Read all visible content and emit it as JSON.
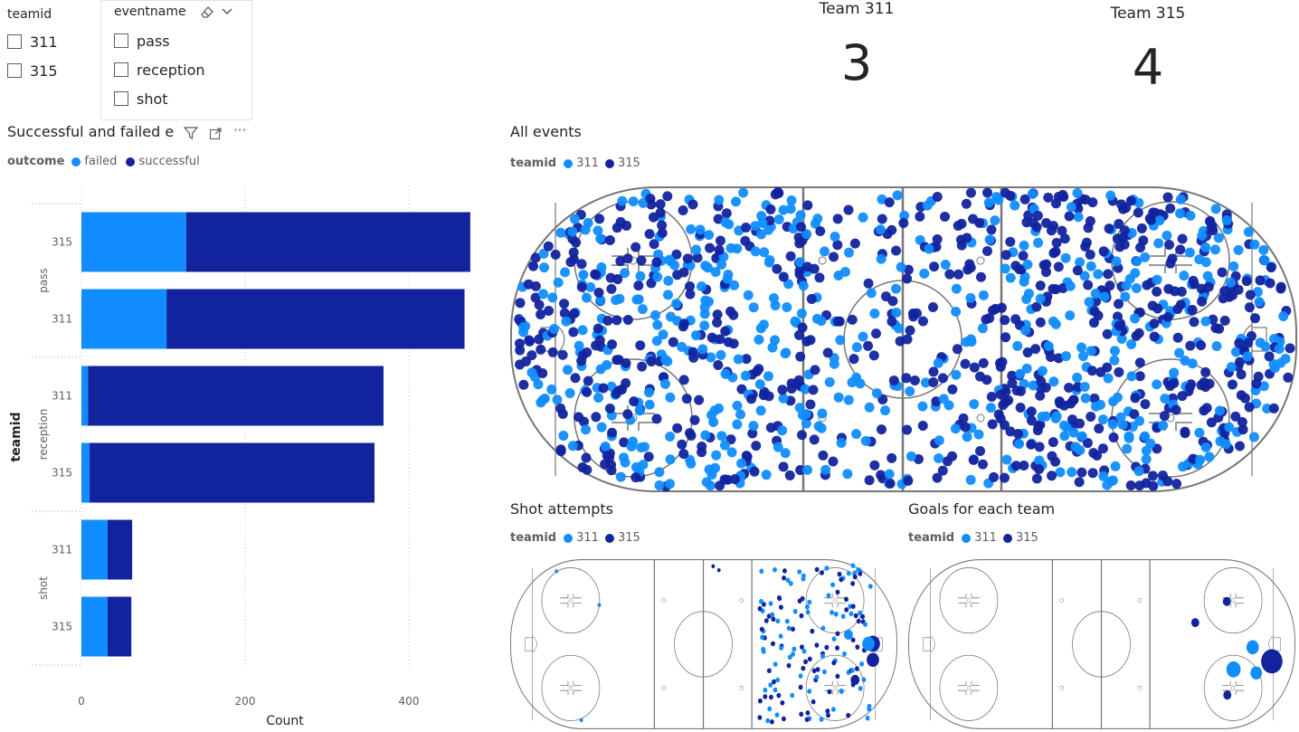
{
  "colors": {
    "team311": "#118DFF",
    "team315": "#12239E",
    "failed": "#118DFF",
    "successful": "#12239E",
    "rink_line": "#777777"
  },
  "slicer_team": {
    "title": "teamid",
    "options": [
      "311",
      "315"
    ]
  },
  "slicer_event": {
    "title": "eventname",
    "options": [
      "pass",
      "reception",
      "shot"
    ]
  },
  "cards": [
    {
      "label": "Team 311",
      "value": "3"
    },
    {
      "label": "Team 315",
      "value": "4"
    }
  ],
  "bar_visual": {
    "title": "Successful and failed e",
    "icons": [
      "filter-icon",
      "focus-mode-icon",
      "more-options-icon"
    ],
    "more": "···"
  },
  "all_events": {
    "title": "All events",
    "legend_title": "teamid",
    "legend": [
      "311",
      "315"
    ]
  },
  "shot_attempts": {
    "title": "Shot attempts",
    "legend_title": "teamid",
    "legend": [
      "311",
      "315"
    ]
  },
  "goals": {
    "title": "Goals for each team",
    "legend_title": "teamid",
    "legend": [
      "311",
      "315"
    ]
  },
  "chart_data": {
    "type": "bar",
    "orientation": "horizontal",
    "stacked": true,
    "legend_title": "outcome",
    "legend_placement": "top-left",
    "ylabel": "teamid",
    "xlabel": "Count",
    "xlim": [
      0,
      480
    ],
    "xticks": [
      0,
      200,
      400
    ],
    "groups": [
      {
        "name": "pass",
        "rows": [
          {
            "team": "315",
            "failed": 128,
            "successful": 347
          },
          {
            "team": "311",
            "failed": 104,
            "successful": 364
          }
        ]
      },
      {
        "name": "reception",
        "rows": [
          {
            "team": "311",
            "failed": 8,
            "successful": 361
          },
          {
            "team": "315",
            "failed": 10,
            "successful": 348
          }
        ]
      },
      {
        "name": "shot",
        "rows": [
          {
            "team": "311",
            "failed": 32,
            "successful": 30
          },
          {
            "team": "315",
            "failed": 32,
            "successful": 29
          }
        ]
      }
    ],
    "series": [
      {
        "name": "failed"
      },
      {
        "name": "successful"
      }
    ]
  }
}
